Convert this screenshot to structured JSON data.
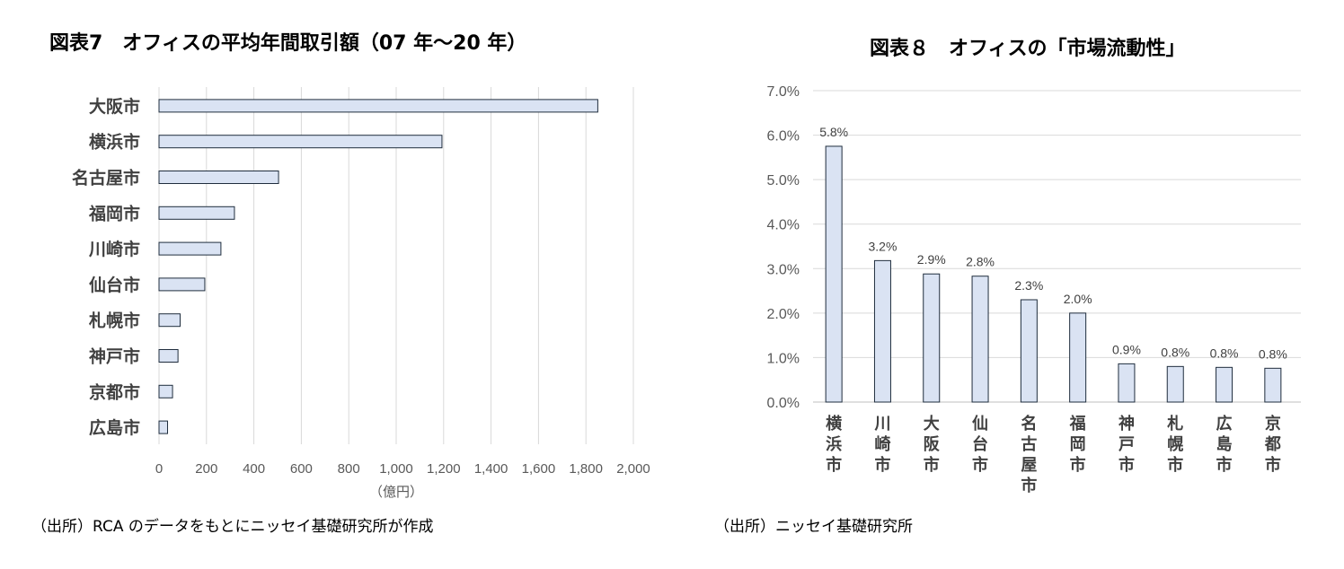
{
  "chart_data": [
    {
      "type": "bar",
      "orientation": "horizontal",
      "title": "図表7　オフィスの平均年間取引額（07 年～20 年）",
      "categories": [
        "大阪市",
        "横浜市",
        "名古屋市",
        "福岡市",
        "川崎市",
        "仙台市",
        "札幌市",
        "神戸市",
        "京都市",
        "広島市"
      ],
      "values": [
        1850,
        1193,
        504,
        318,
        261,
        193,
        89,
        80,
        57,
        36
      ],
      "xlabel": "（億円）",
      "xlim": [
        0,
        2000
      ],
      "xticks": [
        "0",
        "200",
        "400",
        "600",
        "800",
        "1,000",
        "1,200",
        "1,400",
        "1,600",
        "1,800",
        "2,000"
      ],
      "grid": true,
      "source": "（出所）RCA のデータをもとにニッセイ基礎研究所が作成",
      "bar_color": "#dae3f3",
      "edge_color": "#1f2d3d"
    },
    {
      "type": "bar",
      "orientation": "vertical",
      "title": "図表８　オフィスの「市場流動性」",
      "categories": [
        "横浜市",
        "川崎市",
        "大阪市",
        "仙台市",
        "名古屋市",
        "福岡市",
        "神戸市",
        "札幌市",
        "広島市",
        "京都市"
      ],
      "values": [
        5.75,
        3.18,
        2.88,
        2.83,
        2.3,
        2.0,
        0.86,
        0.8,
        0.78,
        0.76
      ],
      "data_labels": [
        "5.8%",
        "3.2%",
        "2.9%",
        "2.8%",
        "2.3%",
        "2.0%",
        "0.9%",
        "0.8%",
        "0.8%",
        "0.8%"
      ],
      "ylim": [
        0,
        7
      ],
      "yticks": [
        "0.0%",
        "1.0%",
        "2.0%",
        "3.0%",
        "4.0%",
        "5.0%",
        "6.0%",
        "7.0%"
      ],
      "grid": true,
      "source": "（出所）ニッセイ基礎研究所",
      "bar_color": "#dae3f3",
      "edge_color": "#1f2d3d"
    }
  ]
}
